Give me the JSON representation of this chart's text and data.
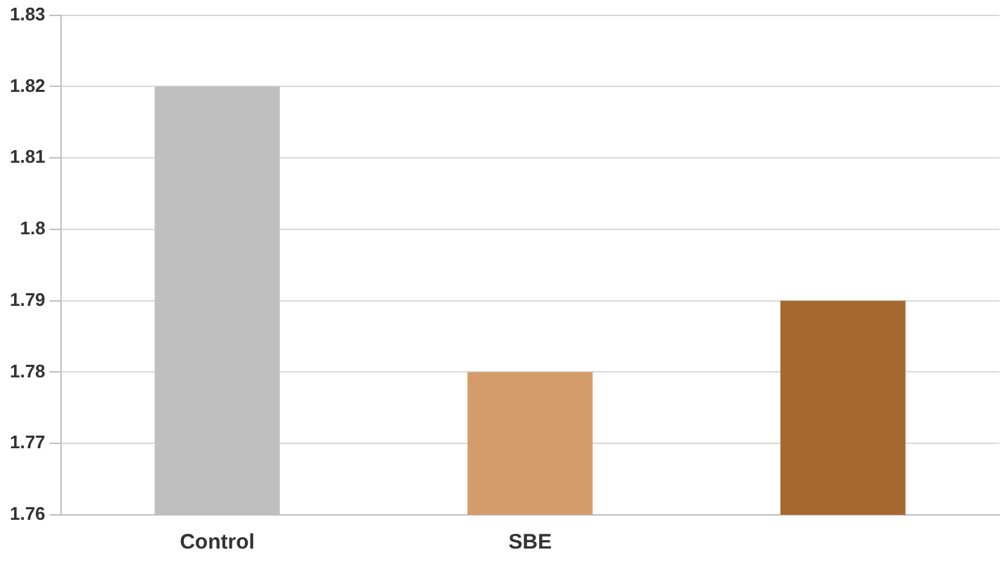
{
  "chart_data": {
    "type": "bar",
    "categories": [
      "Control",
      "SBE",
      null
    ],
    "values": [
      1.82,
      1.78,
      1.79
    ],
    "colors": [
      "#bfbfbf",
      "#d49c6a",
      "#a5692f"
    ],
    "ylim": [
      1.76,
      1.83
    ],
    "yticks": [
      1.76,
      1.77,
      1.78,
      1.79,
      1.8,
      1.81,
      1.82,
      1.83
    ],
    "grid": "y",
    "legend": false
  }
}
